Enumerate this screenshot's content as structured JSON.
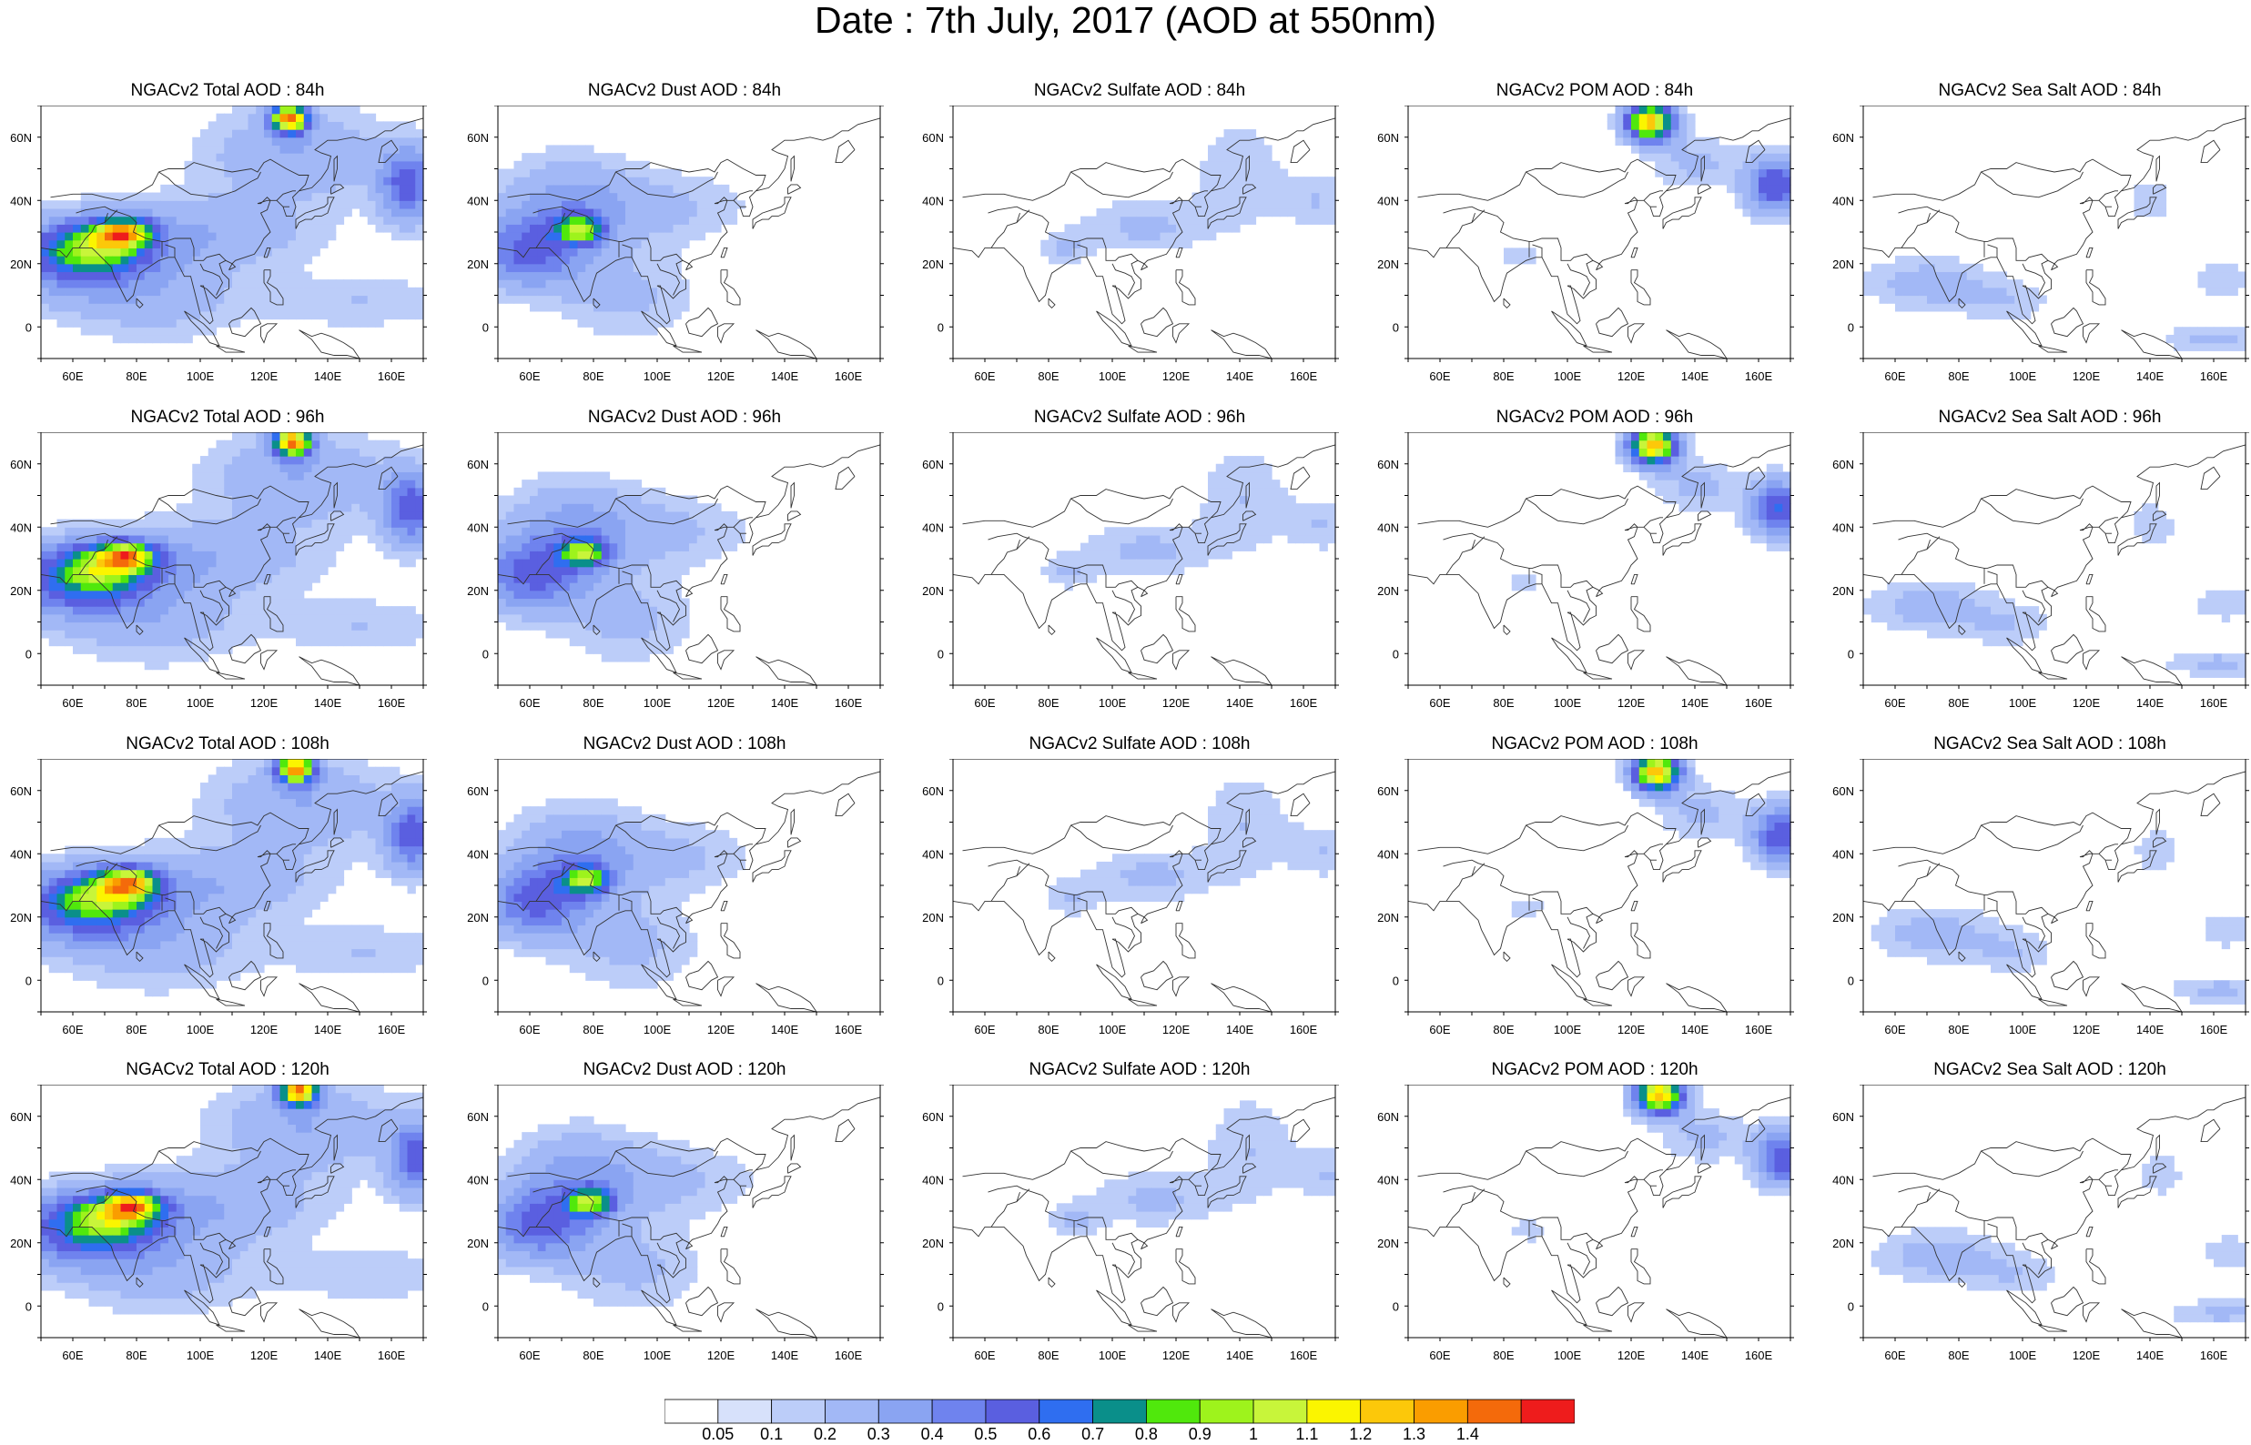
{
  "title": "Date : 7th July, 2017 (AOD at 550nm)",
  "axes": {
    "x_ticks": [
      "60E",
      "80E",
      "100E",
      "120E",
      "140E",
      "160E"
    ],
    "y_ticks": [
      "60N",
      "40N",
      "20N",
      "0"
    ],
    "lon_range": [
      50,
      170
    ],
    "lat_range": [
      -10,
      70
    ]
  },
  "panels": [
    {
      "title": "NGACv2 Total AOD : 84h",
      "species": "total",
      "hour": 84
    },
    {
      "title": "NGACv2 Dust AOD : 84h",
      "species": "dust",
      "hour": 84
    },
    {
      "title": "NGACv2 Sulfate AOD : 84h",
      "species": "sulfate",
      "hour": 84
    },
    {
      "title": "NGACv2 POM AOD : 84h",
      "species": "pom",
      "hour": 84
    },
    {
      "title": "NGACv2 Sea Salt AOD : 84h",
      "species": "seasalt",
      "hour": 84
    },
    {
      "title": "NGACv2 Total AOD : 96h",
      "species": "total",
      "hour": 96
    },
    {
      "title": "NGACv2 Dust AOD : 96h",
      "species": "dust",
      "hour": 96
    },
    {
      "title": "NGACv2 Sulfate AOD : 96h",
      "species": "sulfate",
      "hour": 96
    },
    {
      "title": "NGACv2 POM AOD : 96h",
      "species": "pom",
      "hour": 96
    },
    {
      "title": "NGACv2 Sea Salt AOD : 96h",
      "species": "seasalt",
      "hour": 96
    },
    {
      "title": "NGACv2 Total AOD : 108h",
      "species": "total",
      "hour": 108
    },
    {
      "title": "NGACv2 Dust AOD : 108h",
      "species": "dust",
      "hour": 108
    },
    {
      "title": "NGACv2 Sulfate AOD : 108h",
      "species": "sulfate",
      "hour": 108
    },
    {
      "title": "NGACv2 POM AOD : 108h",
      "species": "pom",
      "hour": 108
    },
    {
      "title": "NGACv2 Sea Salt AOD : 108h",
      "species": "seasalt",
      "hour": 108
    },
    {
      "title": "NGACv2 Total AOD : 120h",
      "species": "total",
      "hour": 120
    },
    {
      "title": "NGACv2 Dust AOD : 120h",
      "species": "dust",
      "hour": 120
    },
    {
      "title": "NGACv2 Sulfate AOD : 120h",
      "species": "sulfate",
      "hour": 120
    },
    {
      "title": "NGACv2 POM AOD : 120h",
      "species": "pom",
      "hour": 120
    },
    {
      "title": "NGACv2 Sea Salt  AOD : 120h",
      "species": "seasalt",
      "hour": 120
    }
  ],
  "colorbar": {
    "levels": [
      "0.05",
      "0.1",
      "0.2",
      "0.3",
      "0.4",
      "0.5",
      "0.6",
      "0.7",
      "0.8",
      "0.9",
      "1",
      "1.1",
      "1.2",
      "1.3",
      "1.4"
    ],
    "colors": [
      "#ffffff",
      "#d7e1fb",
      "#bccdf9",
      "#a2b8f6",
      "#8aa4f2",
      "#6f83ee",
      "#5a5fe0",
      "#2f6ef0",
      "#0a8f8a",
      "#50e80c",
      "#9ef31c",
      "#c8f53a",
      "#fbf500",
      "#fcc80a",
      "#fa9d00",
      "#f46a0b",
      "#ee1c1c"
    ]
  }
}
